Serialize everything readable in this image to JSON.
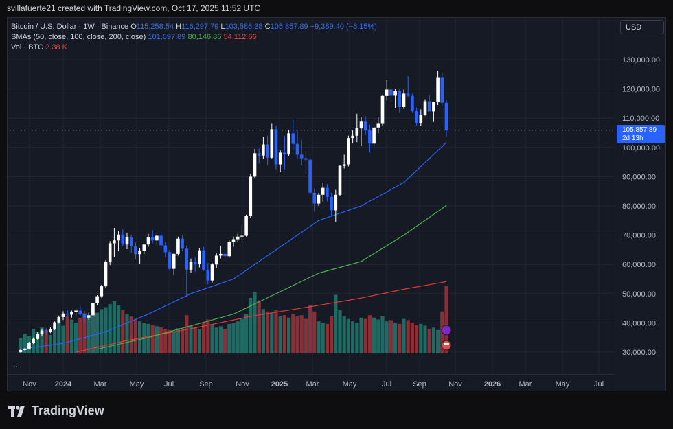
{
  "header": {
    "text": "svillafuerte21 created with TradingView.com, Oct 17, 2025 11:52 UTC"
  },
  "legend": {
    "symbol": "Bitcoin / U.S. Dollar · 1W · Binance",
    "o_label": "O",
    "o_val": "115,258.54",
    "h_label": "H",
    "h_val": "116,297.79",
    "l_label": "L",
    "l_val": "103,586.38",
    "c_label": "C",
    "c_val": "105,857.89",
    "change": "−9,389.40 (−8.15%)",
    "sma_label": "SMAs (50, close, 100, close, 200, close)",
    "sma50": "101,697.89",
    "sma100": "80,146.86",
    "sma200": "54,112.66",
    "vol_label": "Vol · BTC",
    "vol_val": "2.38 K"
  },
  "controls": {
    "currency": "USD",
    "more": "..."
  },
  "last_price": {
    "value": "105,857.89",
    "countdown": "2d 13h"
  },
  "price_axis": [
    "130,000.00",
    "120,000.00",
    "110,000.00",
    "100,000.00",
    "90,000.00",
    "80,000.00",
    "70,000.00",
    "60,000.00",
    "50,000.00",
    "40,000.00",
    "30,000.00"
  ],
  "time_axis": [
    "Nov",
    "2024",
    "Mar",
    "May",
    "Jul",
    "Sep",
    "Nov",
    "2025",
    "Mar",
    "May",
    "Jul",
    "Sep",
    "Nov",
    "2026",
    "Mar",
    "May",
    "Jul"
  ],
  "brand": "TradingView",
  "colors": {
    "up": "#ffffff",
    "down": "#2962ff",
    "sma50": "#2962ff",
    "sma100": "#4caf50",
    "sma200": "#e53935",
    "vol_up": "#1f6b63",
    "vol_down": "#8b2e35"
  },
  "chart_data": {
    "type": "candlestick",
    "title": "Bitcoin / U.S. Dollar · 1W · Binance",
    "ylim": [
      30000,
      135000
    ],
    "candles": [
      [
        30000,
        31000,
        29800,
        30700
      ],
      [
        30700,
        31500,
        30300,
        31200
      ],
      [
        31200,
        33500,
        30900,
        33200
      ],
      [
        33200,
        35000,
        32800,
        34500
      ],
      [
        34500,
        36800,
        34000,
        36200
      ],
      [
        36200,
        38000,
        35500,
        37400
      ],
      [
        37400,
        38200,
        35800,
        37000
      ],
      [
        37000,
        38500,
        36500,
        37800
      ],
      [
        37800,
        40500,
        37500,
        40200
      ],
      [
        40200,
        42500,
        39800,
        42000
      ],
      [
        42000,
        44000,
        41000,
        43200
      ],
      [
        43200,
        44500,
        42000,
        42800
      ],
      [
        42800,
        44200,
        41800,
        43800
      ],
      [
        43800,
        45000,
        42500,
        44200
      ],
      [
        44200,
        45800,
        42300,
        43000
      ],
      [
        43000,
        44200,
        39800,
        41800
      ],
      [
        41800,
        43500,
        41000,
        42600
      ],
      [
        42600,
        47000,
        42200,
        46800
      ],
      [
        46800,
        49500,
        46200,
        49100
      ],
      [
        49100,
        53000,
        48600,
        52500
      ],
      [
        52500,
        61500,
        52000,
        61000
      ],
      [
        61000,
        68000,
        59800,
        67200
      ],
      [
        67200,
        72500,
        62500,
        68200
      ],
      [
        68200,
        71500,
        64500,
        70200
      ],
      [
        70200,
        72000,
        66200,
        66800
      ],
      [
        66800,
        70800,
        65200,
        69200
      ],
      [
        69200,
        70200,
        64000,
        66200
      ],
      [
        66200,
        67500,
        61800,
        63500
      ],
      [
        63500,
        65500,
        60300,
        64500
      ],
      [
        64500,
        67000,
        63500,
        66800
      ],
      [
        66800,
        70500,
        66000,
        69400
      ],
      [
        69400,
        71800,
        67200,
        68200
      ],
      [
        68200,
        70500,
        66300,
        69800
      ],
      [
        69800,
        71200,
        65800,
        66500
      ],
      [
        66500,
        67800,
        62500,
        64200
      ],
      [
        64200,
        65000,
        58000,
        58500
      ],
      [
        58500,
        64000,
        56500,
        63600
      ],
      [
        63600,
        69500,
        63000,
        68800
      ],
      [
        68800,
        70000,
        64500,
        65400
      ],
      [
        65400,
        66400,
        49000,
        58200
      ],
      [
        58200,
        62000,
        57200,
        61000
      ],
      [
        61000,
        62500,
        57500,
        60200
      ],
      [
        60200,
        65500,
        59000,
        64800
      ],
      [
        64800,
        66000,
        57800,
        58200
      ],
      [
        58200,
        60500,
        53200,
        54500
      ],
      [
        54500,
        60500,
        53800,
        60000
      ],
      [
        60000,
        63800,
        58800,
        63000
      ],
      [
        63000,
        66300,
        62000,
        63600
      ],
      [
        63600,
        65000,
        61500,
        62800
      ],
      [
        62800,
        68500,
        62300,
        67800
      ],
      [
        67800,
        69500,
        66000,
        68600
      ],
      [
        68600,
        70500,
        67500,
        69500
      ],
      [
        69500,
        73500,
        68500,
        69800
      ],
      [
        69800,
        77000,
        69500,
        76500
      ],
      [
        76500,
        91000,
        76000,
        90000
      ],
      [
        90000,
        99500,
        89500,
        98000
      ],
      [
        98000,
        99600,
        94500,
        97200
      ],
      [
        97200,
        103500,
        96000,
        101000
      ],
      [
        101000,
        104000,
        94000,
        96500
      ],
      [
        96500,
        108300,
        96000,
        106200
      ],
      [
        106200,
        107500,
        92500,
        94200
      ],
      [
        94200,
        99000,
        91500,
        98200
      ],
      [
        98200,
        104000,
        92500,
        97600
      ],
      [
        97600,
        106000,
        97000,
        104800
      ],
      [
        104800,
        109500,
        99000,
        101200
      ],
      [
        101200,
        106000,
        96000,
        97500
      ],
      [
        97500,
        102500,
        94000,
        96300
      ],
      [
        96300,
        98800,
        91000,
        95800
      ],
      [
        95800,
        97500,
        84000,
        84500
      ],
      [
        84500,
        86000,
        78000,
        80800
      ],
      [
        80800,
        84500,
        80000,
        83800
      ],
      [
        83800,
        88000,
        81500,
        86200
      ],
      [
        86200,
        87500,
        81500,
        83100
      ],
      [
        83100,
        84500,
        76500,
        78500
      ],
      [
        78500,
        85500,
        74500,
        83800
      ],
      [
        83800,
        94000,
        83300,
        93700
      ],
      [
        93700,
        97500,
        92800,
        94200
      ],
      [
        94200,
        104000,
        93500,
        103200
      ],
      [
        103200,
        105800,
        101500,
        104000
      ],
      [
        104000,
        111500,
        101800,
        106500
      ],
      [
        106500,
        110500,
        100500,
        108800
      ],
      [
        108800,
        110600,
        104300,
        105800
      ],
      [
        105800,
        107800,
        98200,
        101300
      ],
      [
        101300,
        107500,
        100600,
        106800
      ],
      [
        106800,
        110500,
        104800,
        108300
      ],
      [
        108300,
        118000,
        107500,
        117600
      ],
      [
        117600,
        123000,
        116000,
        119800
      ],
      [
        119800,
        120800,
        115500,
        117700
      ],
      [
        117700,
        120000,
        113500,
        119300
      ],
      [
        119300,
        119900,
        112000,
        113800
      ],
      [
        113800,
        119800,
        113200,
        118400
      ],
      [
        118400,
        124500,
        117300,
        117600
      ],
      [
        117600,
        118400,
        112000,
        112500
      ],
      [
        112500,
        113600,
        107500,
        108400
      ],
      [
        108400,
        113000,
        107300,
        111200
      ],
      [
        111200,
        116500,
        110800,
        115800
      ],
      [
        115800,
        117900,
        112500,
        112300
      ],
      [
        112300,
        115000,
        108700,
        115500
      ],
      [
        115500,
        126200,
        114500,
        124000
      ],
      [
        124000,
        125500,
        114000,
        115259
      ],
      [
        115258.54,
        116297.79,
        103586.38,
        105857.89
      ]
    ],
    "sma50": [
      [
        0,
        31000
      ],
      [
        10,
        33000
      ],
      [
        20,
        37000
      ],
      [
        30,
        43000
      ],
      [
        40,
        50000
      ],
      [
        50,
        55000
      ],
      [
        60,
        65000
      ],
      [
        70,
        75000
      ],
      [
        80,
        80000
      ],
      [
        90,
        88000
      ],
      [
        100,
        101697.89
      ]
    ],
    "sma100": [
      [
        18,
        31000
      ],
      [
        30,
        35000
      ],
      [
        40,
        39000
      ],
      [
        50,
        43000
      ],
      [
        60,
        50000
      ],
      [
        70,
        57000
      ],
      [
        80,
        61000
      ],
      [
        90,
        70000
      ],
      [
        100,
        80146.86
      ]
    ],
    "sma200": [
      [
        13,
        30000
      ],
      [
        25,
        34000
      ],
      [
        40,
        38000
      ],
      [
        55,
        42500
      ],
      [
        70,
        46000
      ],
      [
        80,
        48500
      ],
      [
        90,
        51500
      ],
      [
        100,
        54112.66
      ]
    ]
  }
}
